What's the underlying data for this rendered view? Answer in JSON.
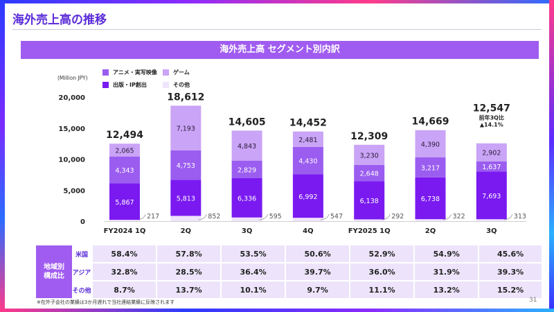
{
  "header": {
    "title": "海外売上高の推移",
    "banner": "海外売上高 セグメント別内訳"
  },
  "colors": {
    "accent": "#a05cf0",
    "anime": "#9b5df0",
    "publishing": "#7a1af0",
    "game": "#caa4f6",
    "other": "#efe4fc",
    "title": "#5a2bd8"
  },
  "chart_data": {
    "type": "bar",
    "stacked": true,
    "unit_label": "(Million JPY)",
    "ylim": [
      0,
      20000
    ],
    "yticks": [
      "20,000",
      "15,000",
      "10,000",
      "5,000",
      "0"
    ],
    "ytick_values": [
      20000,
      15000,
      10000,
      5000,
      0
    ],
    "categories": [
      "FY2024 1Q",
      "2Q",
      "3Q",
      "4Q",
      "FY2025 1Q",
      "2Q",
      "3Q"
    ],
    "series": [
      {
        "name": "その他",
        "key": "other",
        "values": [
          217,
          852,
          595,
          547,
          292,
          322,
          313
        ],
        "labels": [
          "217",
          "852",
          "595",
          "547",
          "292",
          "322",
          "313"
        ]
      },
      {
        "name": "出版・IP創出",
        "key": "publishing",
        "values": [
          5867,
          5813,
          6336,
          6992,
          6138,
          6738,
          7693
        ],
        "labels": [
          "5,867",
          "5,813",
          "6,336",
          "6,992",
          "6,138",
          "6,738",
          "7,693"
        ]
      },
      {
        "name": "アニメ・実写映像",
        "key": "anime",
        "values": [
          4343,
          4753,
          2829,
          4430,
          2648,
          3217,
          1637
        ],
        "labels": [
          "4,343",
          "4,753",
          "2,829",
          "4,430",
          "2,648",
          "3,217",
          "1,637"
        ]
      },
      {
        "name": "ゲーム",
        "key": "game",
        "values": [
          2065,
          7193,
          4843,
          2481,
          3230,
          4390,
          2902
        ],
        "labels": [
          "2,065",
          "7,193",
          "4,843",
          "2,481",
          "3,230",
          "4,390",
          "2,902"
        ]
      }
    ],
    "totals": [
      12494,
      18612,
      14605,
      14452,
      12309,
      14669,
      12547
    ],
    "total_labels": [
      "12,494",
      "18,612",
      "14,605",
      "14,452",
      "12,309",
      "14,669",
      "12,547"
    ],
    "yoy_note": {
      "line1": "前年3Q比",
      "line2": "▲14.1%"
    }
  },
  "legend": [
    {
      "label": "アニメ・実写映像",
      "key": "anime"
    },
    {
      "label": "ゲーム",
      "key": "game"
    },
    {
      "label": "出版・IP創出",
      "key": "publishing"
    },
    {
      "label": "その他",
      "key": "other"
    }
  ],
  "region_table": {
    "group_label_line1": "地域別",
    "group_label_line2": "構成比",
    "rows": [
      {
        "label": "米国",
        "values": [
          "58.4%",
          "57.8%",
          "53.5%",
          "50.6%",
          "52.9%",
          "54.9%",
          "45.6%"
        ]
      },
      {
        "label": "アジア",
        "values": [
          "32.8%",
          "28.5%",
          "36.4%",
          "39.7%",
          "36.0%",
          "31.9%",
          "39.3%"
        ]
      },
      {
        "label": "その他",
        "values": [
          "8.7%",
          "13.7%",
          "10.1%",
          "9.7%",
          "11.1%",
          "13.2%",
          "15.2%"
        ]
      }
    ]
  },
  "footnote": "※在外子会社の業績は3か月遅れで当社連結業績に反映されます",
  "page_number": "31"
}
